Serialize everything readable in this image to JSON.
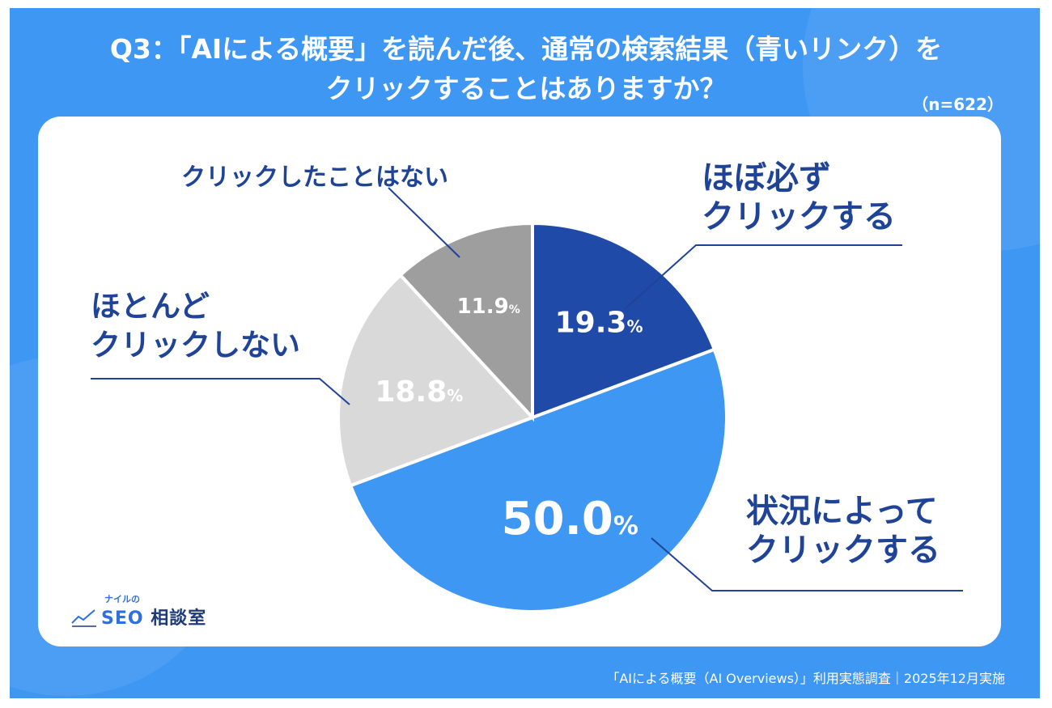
{
  "title_line1": "Q3：「AIによる概要」を読んだ後、通常の検索結果（青いリンク）を",
  "title_line2": "クリックすることはありますか？",
  "sample_note": "（n=622）",
  "logo": {
    "small_text": "ナイルの",
    "seo": "SEO",
    "rest": "相談室"
  },
  "footer": "「AIによる概要（AI Overviews）」利用実態調査｜2025年12月実施",
  "chart_data": {
    "type": "pie",
    "title": "Q3：「AIによる概要」を読んだ後、通常の検索結果（青いリンク）をクリックすることはありますか？",
    "n": 622,
    "unit": "%",
    "start": "12 o'clock, clockwise",
    "slices": [
      {
        "label_lines": [
          "ほぼ必ず",
          "クリックする"
        ],
        "value": 19.3,
        "color": "#1f4aa8",
        "value_color": "#ffffff"
      },
      {
        "label_lines": [
          "状況によって",
          "クリックする"
        ],
        "value": 50.0,
        "color": "#3f97f4",
        "value_color": "#ffffff"
      },
      {
        "label_lines": [
          "ほとんど",
          "クリックしない"
        ],
        "value": 18.8,
        "color": "#d9d9d9",
        "value_color": "#ffffff"
      },
      {
        "label_lines": [
          "クリックしたことはない"
        ],
        "value": 11.9,
        "color": "#9e9e9e",
        "value_color": "#ffffff"
      }
    ],
    "value_labels": [
      "19.3%",
      "50.0%",
      "18.8%",
      "11.9%"
    ]
  }
}
